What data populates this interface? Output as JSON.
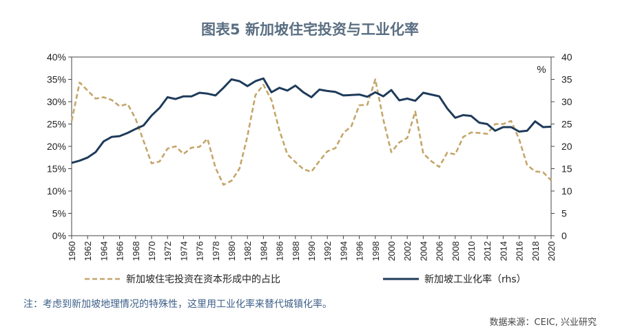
{
  "chart_data": {
    "type": "line",
    "title": "图表5  新加坡住宅投资与工业化率",
    "right_unit": "%",
    "x": [
      1960,
      1961,
      1962,
      1963,
      1964,
      1965,
      1966,
      1967,
      1968,
      1969,
      1970,
      1971,
      1972,
      1973,
      1974,
      1975,
      1976,
      1977,
      1978,
      1979,
      1980,
      1981,
      1982,
      1983,
      1984,
      1985,
      1986,
      1987,
      1988,
      1989,
      1990,
      1991,
      1992,
      1993,
      1994,
      1995,
      1996,
      1997,
      1998,
      1999,
      2000,
      2001,
      2002,
      2003,
      2004,
      2005,
      2006,
      2007,
      2008,
      2009,
      2010,
      2011,
      2012,
      2013,
      2014,
      2015,
      2016,
      2017,
      2018,
      2019,
      2020
    ],
    "x_tick_labels": [
      "1960",
      "1962",
      "1964",
      "1966",
      "1968",
      "1970",
      "1972",
      "1974",
      "1976",
      "1978",
      "1980",
      "1982",
      "1984",
      "1986",
      "1988",
      "1990",
      "1992",
      "1994",
      "1996",
      "1998",
      "2000",
      "2002",
      "2004",
      "2006",
      "2008",
      "2010",
      "2012",
      "2014",
      "2016",
      "2018",
      "2020"
    ],
    "y_left_ticks": [
      "0%",
      "5%",
      "10%",
      "15%",
      "20%",
      "25%",
      "30%",
      "35%",
      "40%"
    ],
    "y_right_ticks": [
      "0",
      "5",
      "10",
      "15",
      "20",
      "25",
      "30",
      "35",
      "40"
    ],
    "ylim": [
      0,
      40
    ],
    "y2lim": [
      0,
      40
    ],
    "legend_position": "bottom",
    "series": [
      {
        "name": "新加坡住宅投资在资本形成中的占比",
        "axis": "left",
        "style": "dashed",
        "color": "#c4a56a",
        "values": [
          25.7,
          34.3,
          32.5,
          30.7,
          31.0,
          30.4,
          29.0,
          29.5,
          26.2,
          21.2,
          16.2,
          16.6,
          19.5,
          20.0,
          18.3,
          19.7,
          19.9,
          21.7,
          15.2,
          11.4,
          12.3,
          15.0,
          22.3,
          31.5,
          33.8,
          30.4,
          23.6,
          18.2,
          16.5,
          14.9,
          14.3,
          16.7,
          18.9,
          19.6,
          23.0,
          24.5,
          29.2,
          29.3,
          35.0,
          26.0,
          18.7,
          20.9,
          21.9,
          27.8,
          18.4,
          16.7,
          15.4,
          18.6,
          18.2,
          22.1,
          23.1,
          23.0,
          22.8,
          25.0,
          25.0,
          25.7,
          21.6,
          15.8,
          14.4,
          14.2,
          12.4
        ]
      },
      {
        "name": "新加坡工业化率（rhs）",
        "axis": "right",
        "style": "solid",
        "color": "#1e3b5a",
        "values": [
          16.3,
          16.8,
          17.5,
          18.7,
          21.1,
          22.1,
          22.3,
          23.0,
          23.9,
          24.7,
          26.9,
          28.6,
          31.0,
          30.6,
          31.2,
          31.2,
          32.0,
          31.8,
          31.4,
          33.1,
          35.0,
          34.6,
          33.5,
          34.6,
          35.2,
          32.1,
          33.1,
          32.5,
          33.6,
          32.1,
          31.0,
          32.7,
          32.4,
          32.2,
          31.4,
          31.5,
          31.6,
          31.1,
          32.1,
          31.2,
          32.6,
          30.3,
          30.7,
          30.2,
          32.0,
          31.6,
          31.2,
          28.5,
          26.4,
          27.0,
          26.8,
          25.3,
          25.0,
          23.5,
          24.3,
          24.3,
          23.3,
          23.5,
          25.6,
          24.3,
          24.4
        ]
      }
    ]
  },
  "note": "注：考虑到新加坡地理情况的特殊性，这里用工业化率来替代城镇化率。",
  "source": "数据来源：CEIC, 兴业研究"
}
